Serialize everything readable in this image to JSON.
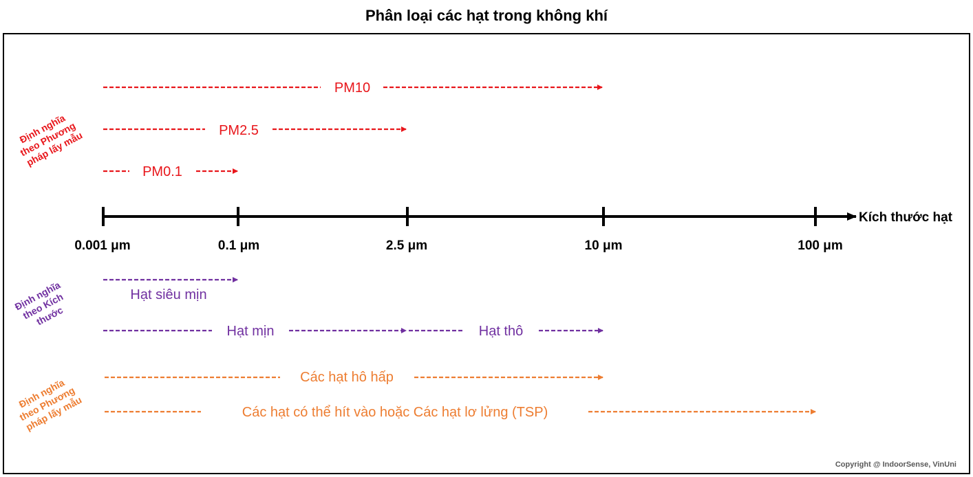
{
  "title": "Phân loại các hạt trong không khí",
  "colors": {
    "sampling": "#e8161b",
    "size": "#7030a0",
    "health": "#ed7d31",
    "axis": "#000000"
  },
  "axis": {
    "label": "Kích thước hạt",
    "ticks": [
      "0.001 μm",
      "0.1 μm",
      "2.5 μm",
      "10 μm",
      "100 μm"
    ]
  },
  "groups": {
    "sampling": {
      "label_lines": [
        "Định nghĩa",
        "theo Phương",
        "pháp lấy mẫu"
      ]
    },
    "size": {
      "label_lines": [
        "Định nghĩa",
        "theo Kích",
        "thước"
      ]
    },
    "health": {
      "label_lines": [
        "Định nghĩa",
        "theo Phương",
        "pháp lấy mẫu"
      ]
    }
  },
  "ranges": {
    "pm10": {
      "label": "PM10",
      "from": "0.001 μm",
      "to": "10 μm"
    },
    "pm25": {
      "label": "PM2.5",
      "from": "0.001 μm",
      "to": "2.5 μm"
    },
    "pm01": {
      "label": "PM0.1",
      "from": "0.001 μm",
      "to": "0.1 μm"
    },
    "ultrafine": {
      "label": "Hạt siêu mịn",
      "from": "0.001 μm",
      "to": "0.1 μm"
    },
    "fine": {
      "label": "Hạt mịn",
      "from": "0.001 μm",
      "to": "2.5 μm"
    },
    "coarse": {
      "label": "Hạt thô",
      "from": "2.5 μm",
      "to": "10 μm"
    },
    "respirable": {
      "label": "Các hạt hô hấp",
      "from": "0.001 μm",
      "to": "10 μm"
    },
    "tsp": {
      "label": "Các hạt có thể hít vào hoặc Các hạt lơ lửng (TSP)",
      "from": "0.001 μm",
      "to": "100 μm"
    }
  },
  "copyright": "Copyright @ IndoorSense, VinUni"
}
